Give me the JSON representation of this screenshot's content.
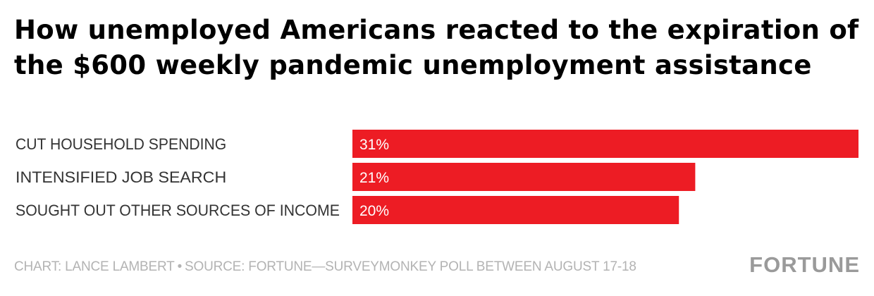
{
  "chart_data": {
    "type": "bar",
    "orientation": "horizontal",
    "title": "How unemployed Americans reacted to the expiration of the $600 weekly pandemic unemployment assistance",
    "categories": [
      "CUT HOUSEHOLD SPENDING",
      "INTENSIFIED JOB SEARCH",
      "SOUGHT OUT OTHER SOURCES OF INCOME"
    ],
    "values": [
      31,
      21,
      20
    ],
    "value_labels": [
      "31%",
      "21%",
      "20%"
    ],
    "unit": "%",
    "xlim": [
      0,
      31
    ],
    "grid": false,
    "bar_color": "#ed1c24"
  },
  "footer": {
    "credit": "CHART: LANCE LAMBERT",
    "separator": "•",
    "source": "SOURCE: FORTUNE—SURVEYMONKEY POLL BETWEEN AUGUST 17-18",
    "logo_text": "FORTUNE"
  }
}
